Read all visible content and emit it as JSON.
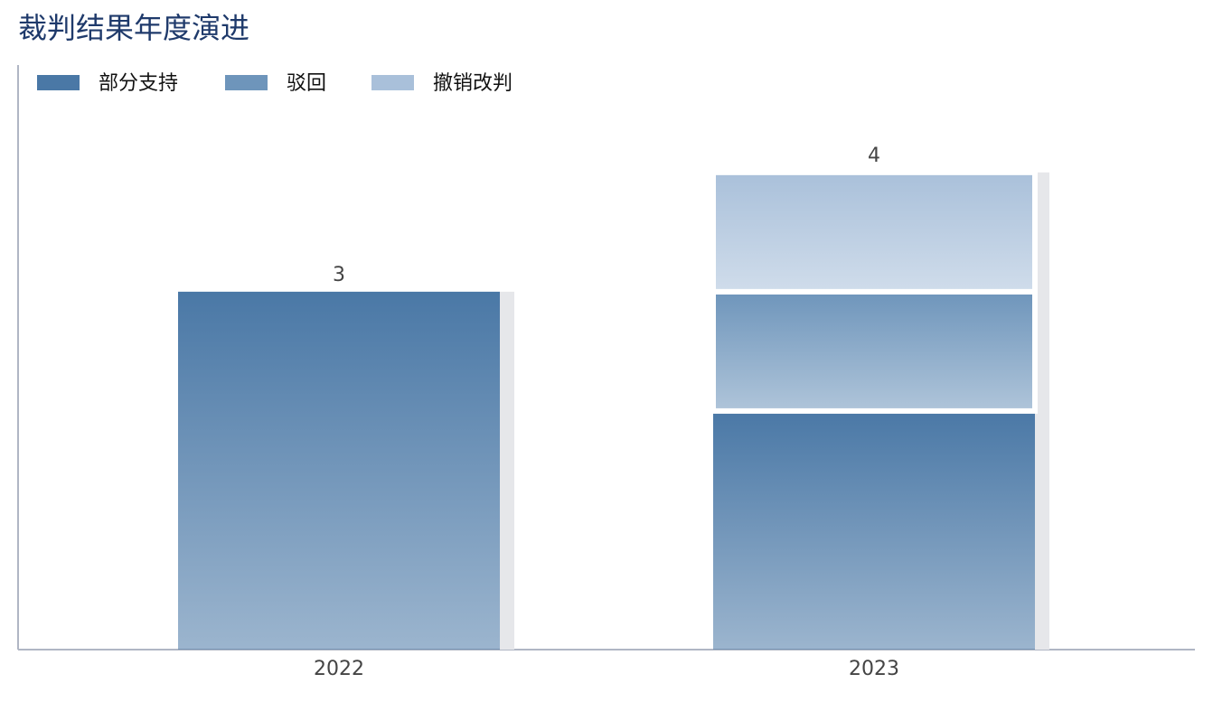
{
  "chart_data": {
    "type": "stacked_bar",
    "title": "裁判结果年度演进",
    "categories": [
      "2022",
      "2023"
    ],
    "series": [
      {
        "name": "部分支持",
        "color": "#4a78a6",
        "values": [
          3,
          2
        ]
      },
      {
        "name": "驳回",
        "color": "#6e95bb",
        "values": [
          0,
          1
        ]
      },
      {
        "name": "撤销改判",
        "color": "#a9c0da",
        "values": [
          0,
          1
        ]
      }
    ],
    "totals": [
      3,
      4
    ],
    "ylim": [
      0,
      4.9
    ],
    "legend": "top-left",
    "grid": false
  }
}
